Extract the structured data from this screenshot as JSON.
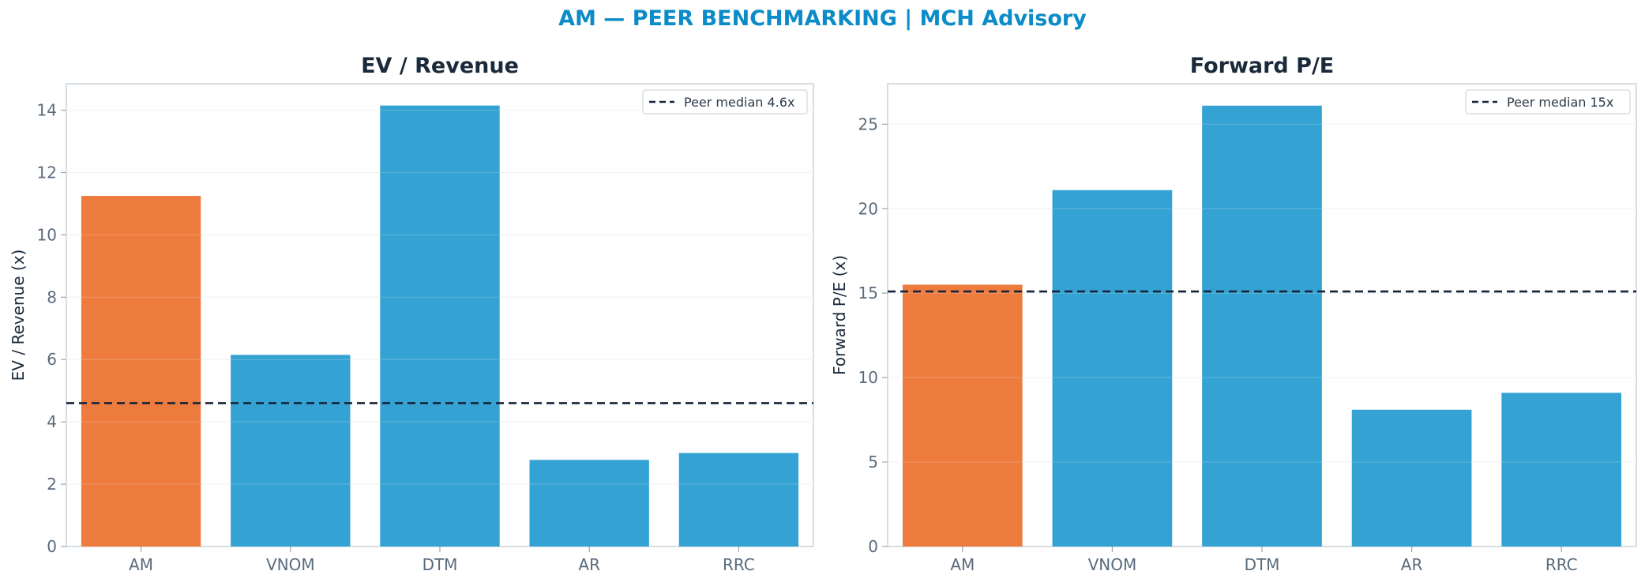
{
  "suptitle": "AM — PEER BENCHMARKING | MCH Advisory",
  "colors": {
    "highlight": "#ed7b3e",
    "peer": "#34a3d3",
    "median_line": "#16243a",
    "title": "#0b8bc7"
  },
  "chart_data": [
    {
      "type": "bar",
      "title": "EV / Revenue",
      "ylabel": "EV / Revenue (x)",
      "categories": [
        "AM",
        "VNOM",
        "DTM",
        "AR",
        "RRC"
      ],
      "values": [
        11.25,
        6.15,
        14.15,
        2.78,
        3.0
      ],
      "highlight": "AM",
      "ylim": [
        0,
        14.85
      ],
      "yticks": [
        0,
        2,
        4,
        6,
        8,
        10,
        12,
        14
      ],
      "reference_line": {
        "value": 4.6,
        "label": "Peer median 4.6x",
        "style": "dashed"
      },
      "legend": "top-right",
      "grid": true
    },
    {
      "type": "bar",
      "title": "Forward P/E",
      "ylabel": "Forward P/E (x)",
      "categories": [
        "AM",
        "VNOM",
        "DTM",
        "AR",
        "RRC"
      ],
      "values": [
        15.5,
        21.1,
        26.1,
        8.1,
        9.1
      ],
      "highlight": "AM",
      "ylim": [
        0,
        27.4
      ],
      "yticks": [
        0,
        5,
        10,
        15,
        20,
        25
      ],
      "reference_line": {
        "value": 15.1,
        "label": "Peer median 15x",
        "style": "dashed"
      },
      "legend": "top-right",
      "grid": true
    }
  ]
}
